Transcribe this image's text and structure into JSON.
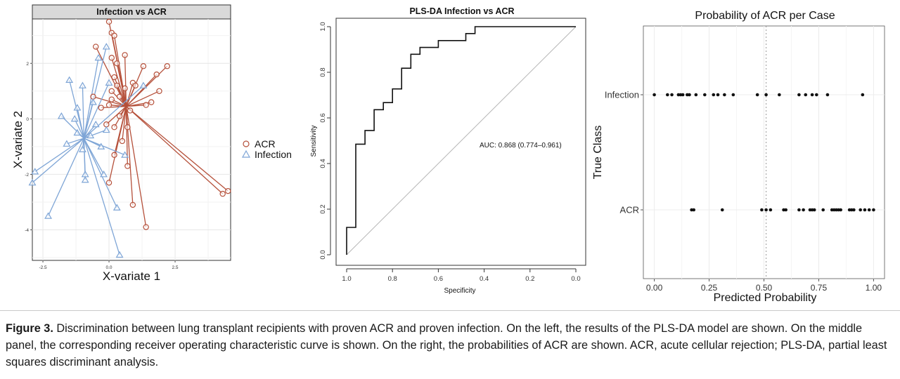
{
  "caption": {
    "label": "Figure 3.",
    "text": " Discrimination between lung transplant recipients with proven ACR and proven infection. On the left, the results of the PLS-DA model are shown. On the middle panel, the corresponding receiver operating characteristic curve is shown. On the right, the probabilities of ACR are shown. ACR, acute cellular rejection; PLS-DA, partial least squares discriminant analysis."
  },
  "chart_data": [
    {
      "type": "scatter",
      "title": "Infection vs ACR",
      "xlabel": "X-variate 1",
      "ylabel": "X-variate 2",
      "xlim": [
        -2.9,
        4.6
      ],
      "ylim": [
        -5.1,
        3.6
      ],
      "x_ticks": [
        -2.5,
        0.0,
        2.5
      ],
      "x_tick_labels": [
        "-2.5",
        "0.0",
        "2.5"
      ],
      "y_ticks": [
        2,
        0,
        -2,
        -4
      ],
      "y_tick_labels": [
        "2",
        "0",
        "-2",
        "-4"
      ],
      "grid": true,
      "legend_position": "right",
      "series": [
        {
          "name": "ACR",
          "color": "#b5503a",
          "marker": "circle",
          "centroid": [
            0.65,
            0.45
          ],
          "points": [
            [
              0.0,
              3.5
            ],
            [
              0.1,
              3.1
            ],
            [
              0.2,
              3.0
            ],
            [
              -0.5,
              2.6
            ],
            [
              0.1,
              2.2
            ],
            [
              0.3,
              2.0
            ],
            [
              0.6,
              2.3
            ],
            [
              0.2,
              1.5
            ],
            [
              0.3,
              1.2
            ],
            [
              0.1,
              1.0
            ],
            [
              0.6,
              1.1
            ],
            [
              0.9,
              1.3
            ],
            [
              1.3,
              1.9
            ],
            [
              1.0,
              1.2
            ],
            [
              1.8,
              1.6
            ],
            [
              2.2,
              1.9
            ],
            [
              1.9,
              1.0
            ],
            [
              1.6,
              0.6
            ],
            [
              1.4,
              0.5
            ],
            [
              -0.3,
              0.4
            ],
            [
              0.0,
              0.5
            ],
            [
              0.1,
              0.7
            ],
            [
              0.4,
              0.8
            ],
            [
              -0.6,
              0.8
            ],
            [
              0.8,
              0.3
            ],
            [
              0.4,
              0.1
            ],
            [
              0.7,
              -0.3
            ],
            [
              0.2,
              -0.3
            ],
            [
              0.5,
              -0.8
            ],
            [
              -0.1,
              -0.2
            ],
            [
              0.2,
              -1.3
            ],
            [
              0.7,
              -1.7
            ],
            [
              0.0,
              -2.3
            ],
            [
              0.9,
              -3.1
            ],
            [
              1.4,
              -3.9
            ],
            [
              4.3,
              -2.7
            ],
            [
              4.5,
              -2.6
            ]
          ]
        },
        {
          "name": "Infection",
          "color": "#7ea5d6",
          "marker": "triangle",
          "centroid": [
            -0.95,
            -0.7
          ],
          "points": [
            [
              -0.1,
              2.6
            ],
            [
              -0.4,
              2.2
            ],
            [
              -1.5,
              1.4
            ],
            [
              0.0,
              1.3
            ],
            [
              -1.0,
              1.2
            ],
            [
              -0.6,
              0.6
            ],
            [
              1.3,
              1.2
            ],
            [
              -1.8,
              0.1
            ],
            [
              -1.2,
              0.4
            ],
            [
              -1.3,
              0.0
            ],
            [
              -0.5,
              -0.2
            ],
            [
              -0.1,
              -0.4
            ],
            [
              -1.6,
              -0.9
            ],
            [
              -0.7,
              -0.6
            ],
            [
              -1.2,
              -0.5
            ],
            [
              -0.3,
              -1.0
            ],
            [
              -1.0,
              -1.1
            ],
            [
              0.6,
              -1.3
            ],
            [
              -0.9,
              -2.0
            ],
            [
              -2.8,
              -1.9
            ],
            [
              -2.9,
              -2.3
            ],
            [
              -0.2,
              -2.0
            ],
            [
              -0.9,
              -2.2
            ],
            [
              0.3,
              -3.2
            ],
            [
              -2.3,
              -3.5
            ],
            [
              0.4,
              -4.9
            ]
          ]
        }
      ]
    },
    {
      "type": "line",
      "title": "PLS-DA Infection vs ACR",
      "xlabel": "Specificity",
      "ylabel": "Sensitivity",
      "xlim": [
        1.0,
        0.0
      ],
      "ylim": [
        0.0,
        1.0
      ],
      "x_ticks": [
        1.0,
        0.8,
        0.6,
        0.4,
        0.2,
        0.0
      ],
      "x_tick_labels": [
        "1.0",
        "0.8",
        "0.6",
        "0.4",
        "0.2",
        "0.0"
      ],
      "y_ticks": [
        0.0,
        0.2,
        0.4,
        0.6,
        0.8,
        1.0
      ],
      "y_tick_labels": [
        "0.0",
        "0.2",
        "0.4",
        "0.6",
        "0.8",
        "1.0"
      ],
      "annotation": "AUC: 0.868 (0.774–0.961)",
      "diagonal": true,
      "roc": {
        "specificity": [
          1.0,
          1.0,
          0.96,
          0.96,
          0.92,
          0.92,
          0.88,
          0.88,
          0.84,
          0.84,
          0.8,
          0.8,
          0.76,
          0.76,
          0.72,
          0.72,
          0.68,
          0.68,
          0.6,
          0.6,
          0.48,
          0.48,
          0.44,
          0.44,
          0.0
        ],
        "sensitivity": [
          0.0,
          0.12,
          0.12,
          0.485,
          0.485,
          0.545,
          0.545,
          0.636,
          0.636,
          0.667,
          0.667,
          0.727,
          0.727,
          0.818,
          0.818,
          0.879,
          0.879,
          0.909,
          0.909,
          0.939,
          0.939,
          0.97,
          0.97,
          1.0,
          1.0
        ]
      }
    },
    {
      "type": "scatter",
      "title": "Probability of ACR per Case",
      "xlabel": "Predicted Probability",
      "ylabel": "True Class",
      "xlim": [
        -0.05,
        1.05
      ],
      "x_ticks": [
        0.0,
        0.25,
        0.5,
        0.75,
        1.0
      ],
      "x_tick_labels": [
        "0.00",
        "0.25",
        "0.50",
        "0.75",
        "1.00"
      ],
      "categories": [
        "Infection",
        "ACR"
      ],
      "threshold": 0.51,
      "grid": true,
      "series": [
        {
          "category": "Infection",
          "values": [
            0.0,
            0.06,
            0.08,
            0.11,
            0.12,
            0.13,
            0.15,
            0.16,
            0.19,
            0.23,
            0.27,
            0.29,
            0.32,
            0.36,
            0.47,
            0.51,
            0.57,
            0.66,
            0.69,
            0.72,
            0.74,
            0.79,
            0.95
          ]
        },
        {
          "category": "ACR",
          "values": [
            0.17,
            0.18,
            0.31,
            0.49,
            0.51,
            0.53,
            0.59,
            0.6,
            0.66,
            0.68,
            0.71,
            0.72,
            0.73,
            0.77,
            0.81,
            0.82,
            0.83,
            0.84,
            0.85,
            0.89,
            0.9,
            0.91,
            0.94,
            0.96,
            0.98,
            1.0
          ]
        }
      ]
    }
  ]
}
